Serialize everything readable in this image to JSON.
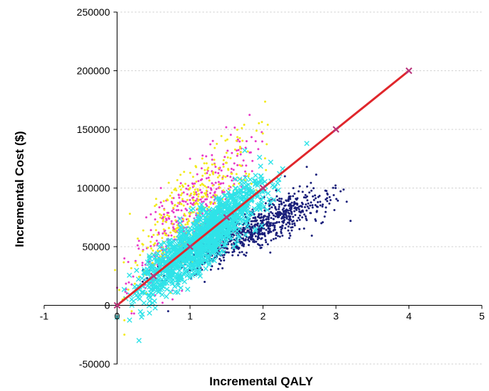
{
  "chart_data": {
    "type": "scatter",
    "xlabel": "Incremental QALY",
    "ylabel": "Incremental Cost ($)",
    "xlim": [
      -1,
      5
    ],
    "ylim": [
      -50000,
      250000
    ],
    "x_ticks": [
      "-1",
      "0",
      "1",
      "2",
      "3",
      "4",
      "5"
    ],
    "y_ticks": [
      "-50000",
      "0",
      "50000",
      "100000",
      "150000",
      "200000",
      "250000"
    ],
    "grid": "horizontal dotted",
    "reference_line": {
      "color": "#e0262b",
      "marker_color": "#b8337a",
      "points": [
        [
          0,
          0
        ],
        [
          0.5,
          25000
        ],
        [
          1,
          50000
        ],
        [
          1.5,
          75000
        ],
        [
          2,
          100000
        ],
        [
          3,
          150000
        ],
        [
          4,
          200000
        ]
      ]
    },
    "series": [
      {
        "color": "#1a1f7a",
        "marker": "dot",
        "center": [
          1.85,
          65000
        ],
        "count": 900,
        "cloud_points": [
          [
            1.0,
            30000
          ],
          [
            1.4,
            45000
          ],
          [
            2.0,
            70000
          ],
          [
            2.3,
            75000
          ],
          [
            2.5,
            65000
          ],
          [
            2.8,
            70000
          ],
          [
            3.2,
            72000
          ],
          [
            2.3,
            110000
          ],
          [
            2.6,
            118000
          ],
          [
            0.7,
            -5000
          ],
          [
            1.2,
            20000
          ],
          [
            2.1,
            45000
          ]
        ]
      },
      {
        "color": "#e83ac8",
        "marker": "dot",
        "center": [
          1.05,
          78000
        ],
        "count": 450,
        "cloud_points": [
          [
            0.1,
            40000
          ],
          [
            0.4,
            75000
          ],
          [
            0.6,
            100000
          ],
          [
            1.0,
            125000
          ],
          [
            1.3,
            128000
          ],
          [
            0.0,
            15000
          ],
          [
            1.5,
            85000
          ],
          [
            0.3,
            55000
          ]
        ]
      },
      {
        "color": "#f2ea1a",
        "marker": "dot",
        "center": [
          1.05,
          82000
        ],
        "count": 350,
        "cloud_points": [
          [
            0.2,
            -5000
          ],
          [
            0.5,
            60000
          ],
          [
            1.0,
            100000
          ],
          [
            1.5,
            130000
          ],
          [
            1.8,
            110000
          ],
          [
            0.1,
            -25000
          ]
        ]
      },
      {
        "color": "#2fe3e8",
        "marker": "x",
        "center": [
          1.2,
          58000
        ],
        "count": 1300,
        "cloud_points": [
          [
            0.0,
            -10000
          ],
          [
            0.3,
            -30000
          ],
          [
            0.5,
            20000
          ],
          [
            1.0,
            50000
          ],
          [
            1.5,
            70000
          ],
          [
            1.75,
            132000
          ],
          [
            2.6,
            138000
          ],
          [
            0.6,
            52000
          ],
          [
            1.9,
            65000
          ],
          [
            0.2,
            5000
          ]
        ]
      }
    ]
  }
}
